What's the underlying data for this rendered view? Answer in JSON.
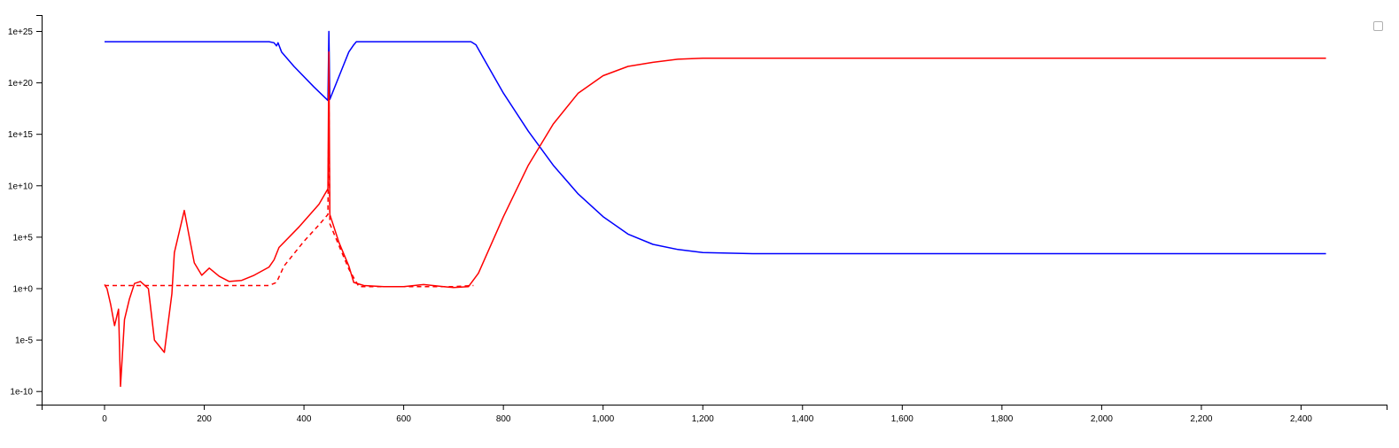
{
  "chart_data": {
    "type": "line",
    "title": "",
    "xlabel": "",
    "ylabel": "",
    "xlim": [
      -130,
      2560
    ],
    "ylim_log10": [
      -11,
      27
    ],
    "y_scale": "log",
    "grid": false,
    "legend": "top-right",
    "x_ticks": [
      0,
      200,
      400,
      600,
      800,
      1000,
      1200,
      1400,
      1600,
      1800,
      2000,
      2200,
      2400
    ],
    "x_tick_labels": [
      "0",
      "200",
      "400",
      "600",
      "800",
      "1,000",
      "1,200",
      "1,400",
      "1,600",
      "1,800",
      "2,000",
      "2,200",
      "2,400"
    ],
    "y_ticks_log10": [
      -10,
      -5,
      0,
      5,
      10,
      15,
      20,
      25
    ],
    "y_tick_labels": [
      "1e-10",
      "1e-5",
      "1e+0",
      "1e+5",
      "1e+10",
      "1e+15",
      "1e+20",
      "1e+25"
    ],
    "series": [
      {
        "color": "#0000ff",
        "dash": "solid",
        "points_log10": [
          [
            0,
            24
          ],
          [
            100,
            24
          ],
          [
            200,
            24
          ],
          [
            300,
            24
          ],
          [
            330,
            24
          ],
          [
            340,
            23.9
          ],
          [
            345,
            23.6
          ],
          [
            348,
            23.9
          ],
          [
            355,
            23
          ],
          [
            380,
            21.6
          ],
          [
            420,
            19.6
          ],
          [
            448,
            18.3
          ],
          [
            450,
            25
          ],
          [
            452,
            18.4
          ],
          [
            470,
            20.6
          ],
          [
            490,
            23
          ],
          [
            500,
            23.7
          ],
          [
            505,
            24
          ],
          [
            520,
            24
          ],
          [
            600,
            24
          ],
          [
            700,
            24
          ],
          [
            735,
            24
          ],
          [
            745,
            23.7
          ],
          [
            760,
            22.4
          ],
          [
            800,
            19
          ],
          [
            850,
            15.3
          ],
          [
            900,
            12
          ],
          [
            950,
            9.2
          ],
          [
            1000,
            7
          ],
          [
            1050,
            5.3
          ],
          [
            1100,
            4.3
          ],
          [
            1150,
            3.8
          ],
          [
            1200,
            3.5
          ],
          [
            1300,
            3.4
          ],
          [
            1600,
            3.4
          ],
          [
            2000,
            3.4
          ],
          [
            2450,
            3.4
          ]
        ]
      },
      {
        "color": "#ff0000",
        "dash": "solid",
        "points_log10": [
          [
            0,
            0.4
          ],
          [
            5,
            0
          ],
          [
            12,
            -1.5
          ],
          [
            20,
            -3.6
          ],
          [
            28,
            -2
          ],
          [
            32,
            -9.5
          ],
          [
            40,
            -3
          ],
          [
            50,
            -1
          ],
          [
            60,
            0.5
          ],
          [
            72,
            0.7
          ],
          [
            88,
            0
          ],
          [
            100,
            -5
          ],
          [
            120,
            -6.2
          ],
          [
            135,
            -0.5
          ],
          [
            140,
            3.5
          ],
          [
            160,
            7.6
          ],
          [
            170,
            5
          ],
          [
            180,
            2.5
          ],
          [
            195,
            1.3
          ],
          [
            210,
            2
          ],
          [
            230,
            1.2
          ],
          [
            250,
            0.7
          ],
          [
            275,
            0.8
          ],
          [
            300,
            1.3
          ],
          [
            330,
            2.1
          ],
          [
            340,
            2.8
          ],
          [
            350,
            4
          ],
          [
            390,
            6
          ],
          [
            430,
            8.2
          ],
          [
            448,
            9.7
          ],
          [
            450,
            23
          ],
          [
            452,
            7.2
          ],
          [
            470,
            4.5
          ],
          [
            490,
            2.2
          ],
          [
            500,
            0.6
          ],
          [
            520,
            0.3
          ],
          [
            560,
            0.2
          ],
          [
            600,
            0.2
          ],
          [
            640,
            0.4
          ],
          [
            680,
            0.2
          ],
          [
            700,
            0.1
          ],
          [
            730,
            0.2
          ],
          [
            750,
            1.5
          ],
          [
            800,
            7
          ],
          [
            850,
            12
          ],
          [
            900,
            16
          ],
          [
            950,
            19
          ],
          [
            1000,
            20.7
          ],
          [
            1050,
            21.6
          ],
          [
            1100,
            22
          ],
          [
            1150,
            22.3
          ],
          [
            1200,
            22.4
          ],
          [
            1400,
            22.4
          ],
          [
            2000,
            22.4
          ],
          [
            2450,
            22.4
          ]
        ]
      },
      {
        "color": "#ff0000",
        "dash": "dashed",
        "points_log10": [
          [
            0,
            0.3
          ],
          [
            100,
            0.3
          ],
          [
            200,
            0.3
          ],
          [
            300,
            0.3
          ],
          [
            330,
            0.3
          ],
          [
            345,
            0.6
          ],
          [
            360,
            2.2
          ],
          [
            400,
            4.6
          ],
          [
            430,
            6.2
          ],
          [
            448,
            7.2
          ],
          [
            450,
            19
          ],
          [
            452,
            6.3
          ],
          [
            470,
            4.2
          ],
          [
            490,
            1.9
          ],
          [
            510,
            0.2
          ],
          [
            600,
            0.2
          ],
          [
            700,
            0.2
          ],
          [
            740,
            0.3
          ]
        ]
      }
    ]
  }
}
